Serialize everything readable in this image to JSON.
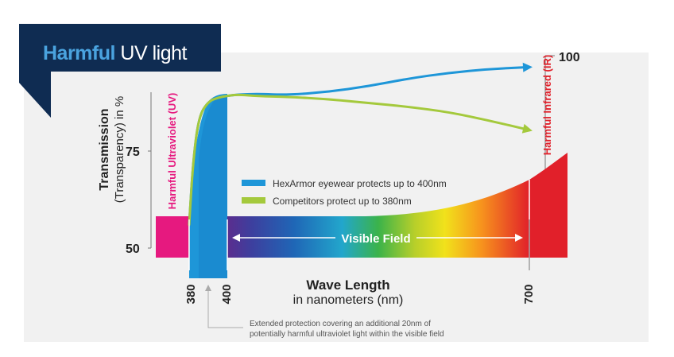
{
  "title_banner": {
    "bold": "Harmful",
    "light": " UV light",
    "bg_color": "#0f2c52",
    "bold_color": "#4aa3df",
    "light_color": "#ffffff"
  },
  "chart_data": {
    "type": "line",
    "title": "Harmful UV light",
    "xlabel": "Wave Length",
    "xlabel_sub": "in nanometers (nm)",
    "ylabel": "Transmission",
    "ylabel_sub": "(Transparency) in %",
    "y_ticks": [
      50,
      75,
      100
    ],
    "x_ticks": [
      380,
      400,
      700
    ],
    "series": [
      {
        "name": "HexArmor eyewear protects up to 400nm",
        "color": "#1e96d8",
        "x": [
          380,
          382,
          385,
          390,
          395,
          400,
          410,
          430,
          460,
          500,
          540,
          580,
          620,
          660,
          700
        ],
        "y": [
          56,
          72,
          84,
          88,
          89,
          89.5,
          89.8,
          90,
          89.7,
          90.5,
          92,
          94,
          95.5,
          96.5,
          97
        ]
      },
      {
        "name": "Competitors protect up to 380nm",
        "color": "#a4c93c",
        "x": [
          380,
          382,
          385,
          390,
          395,
          400,
          410,
          430,
          460,
          500,
          540,
          580,
          620,
          660,
          700
        ],
        "y": [
          56,
          72,
          84,
          88,
          89,
          89.5,
          89.8,
          89.4,
          89.2,
          88.6,
          87.6,
          86.6,
          85.2,
          83,
          80.5
        ]
      }
    ],
    "annotations": {
      "uv_label": "Harmful Ultraviolet (UV)",
      "ir_label": "Harmful Infrared (IR)",
      "visible_field": "Visible Field",
      "note_line1": "Extended protection covering an additional 20nm of",
      "note_line2": "potentially harmful ultraviolet light within the visible field"
    },
    "colors": {
      "uv": "#e6197f",
      "ir": "#e1202a",
      "hexarmor": "#1e96d8",
      "competitor": "#a4c93c",
      "plot_bg": "#f1f1f1"
    }
  }
}
